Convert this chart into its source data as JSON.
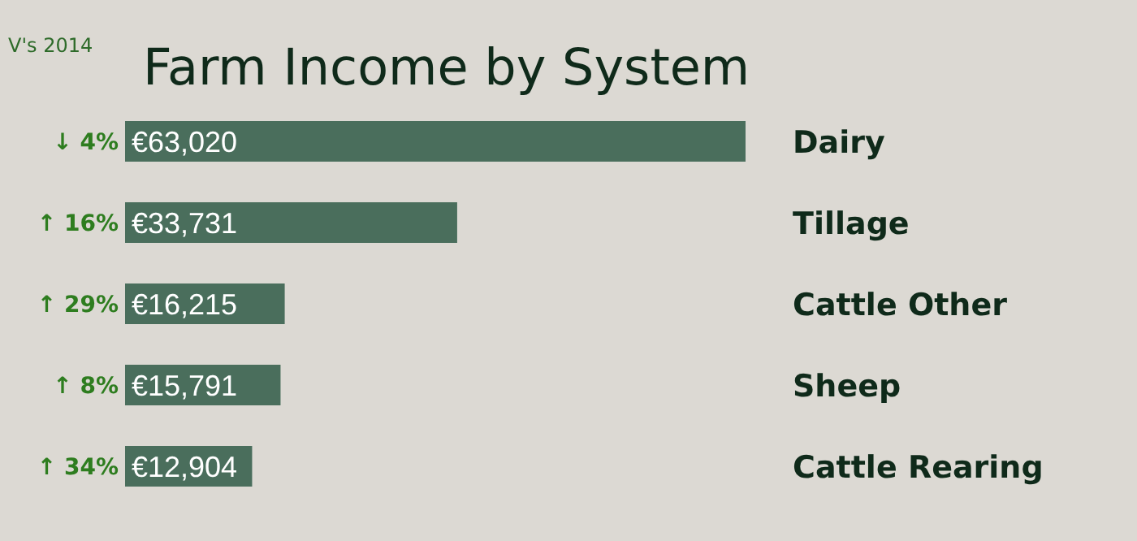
{
  "chart_data": {
    "type": "bar",
    "orientation": "horizontal",
    "title": "Farm Income by System",
    "subtitle": "V's 2014",
    "categories": [
      "Dairy",
      "Tillage",
      "Cattle Other",
      "Sheep",
      "Cattle Rearing"
    ],
    "values": [
      63020,
      33731,
      16215,
      15791,
      12904
    ],
    "value_labels": [
      "€63,020",
      "€33,731",
      "€16,215",
      "€15,791",
      "€12,904"
    ],
    "color": "#4a6e5c",
    "annotations": [
      "↓ 4%",
      "↑ 16%",
      "↑ 29%",
      "↑ 8%",
      "↑ 34%"
    ]
  }
}
